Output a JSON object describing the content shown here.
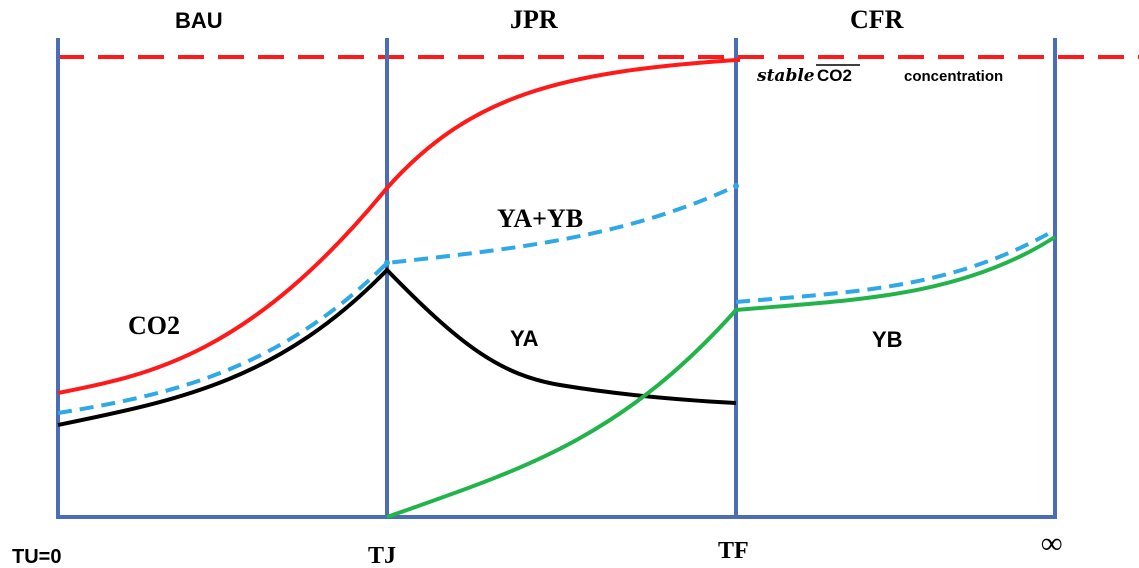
{
  "regions": [
    "BAU",
    "JPR",
    "CFR"
  ],
  "time_labels": [
    "TU=0",
    "TJ",
    "TF",
    "∞"
  ],
  "stable_line": {
    "prefix": "stable",
    "subscript": "CO2",
    "suffix": "concentration"
  },
  "curve_labels": {
    "co2": "CO2",
    "ya_yb": "YA+YB",
    "ya": "YA",
    "yb": "YB"
  },
  "colors": {
    "co2": "#ff1a1a",
    "ya_yb": "#2ea8e6",
    "ya": "#000000",
    "yb": "#22b44a",
    "axes": "#4a6db5",
    "stable": "#ff1a1a"
  }
}
